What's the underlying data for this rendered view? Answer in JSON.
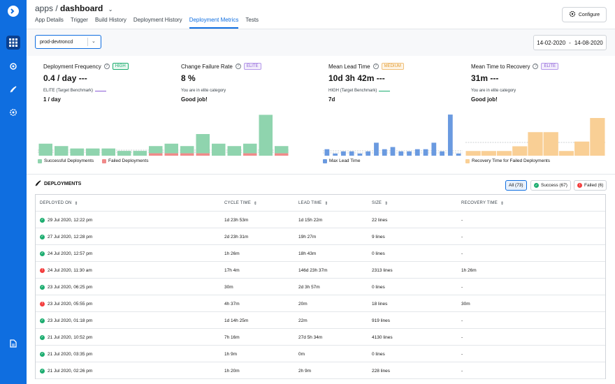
{
  "header": {
    "app_prefix": "apps / ",
    "app_name": "dashboard",
    "tabs": [
      {
        "label": "App Details",
        "active": false
      },
      {
        "label": "Trigger",
        "active": false
      },
      {
        "label": "Build History",
        "active": false
      },
      {
        "label": "Deployment History",
        "active": false
      },
      {
        "label": "Deployment Metrics",
        "active": true
      },
      {
        "label": "Tests",
        "active": false
      }
    ],
    "configure_label": "Configure"
  },
  "filters": {
    "environment": "prod-devtroncd",
    "date_from": "14-02-2020",
    "date_sep": "-",
    "date_to": "14-08-2020"
  },
  "metrics": [
    {
      "title": "Deployment Frequency",
      "badge": "HIGH",
      "badge_type": "high",
      "value": "0.4 / day ---",
      "sub": "ELITE (Target Benchmark)",
      "sub_color": "#8b5cd6",
      "foot": "1 / day"
    },
    {
      "title": "Change Failure Rate",
      "badge": "ELITE",
      "badge_type": "elite",
      "value": "8 %",
      "sub": "You are in elite category",
      "sub_color": "",
      "foot": "Good job!"
    },
    {
      "title": "Mean Lead Time",
      "badge": "MEDIUM",
      "badge_type": "medium",
      "value": "10d 3h 42m ---",
      "sub": "HIGH (Target Benchmark)",
      "sub_color": "#1dad70",
      "foot": "7d"
    },
    {
      "title": "Mean Time to Recovery",
      "badge": "ELITE",
      "badge_type": "elite",
      "value": "31m ---",
      "sub": "You are in elite category",
      "sub_color": "",
      "foot": "Good job!"
    }
  ],
  "chart_data": [
    {
      "type": "bar",
      "series": [
        {
          "name": "Successful Deployments",
          "color": "#8fd4ae",
          "values": [
            5,
            4,
            3,
            3,
            3,
            2,
            2,
            3,
            4,
            3,
            8,
            5,
            4,
            4,
            17,
            3
          ]
        },
        {
          "name": "Failed Deployments",
          "color": "#f08a8a",
          "values": [
            0,
            0,
            0,
            0,
            0,
            0,
            0,
            1,
            1,
            1,
            1,
            0,
            0,
            1,
            0,
            1
          ]
        }
      ],
      "series_note": "green and red series are stacked per day"
    },
    {
      "type": "bar",
      "series": [
        {
          "name": "Max Lead Time",
          "color": "#6a9ae0",
          "values": [
            3,
            1,
            2,
            2,
            1,
            2,
            6,
            3,
            4,
            2,
            2,
            3,
            3,
            6,
            2,
            19,
            1
          ]
        }
      ]
    },
    {
      "type": "bar",
      "series": [
        {
          "name": "Recovery Time for Failed Deployments",
          "color": "#f9cf95",
          "values": [
            1,
            1,
            1,
            2,
            5,
            5,
            1,
            3,
            8
          ]
        }
      ]
    }
  ],
  "deployments": {
    "title": "DEPLOYMENTS",
    "filters": [
      {
        "label": "All (73)",
        "active": true,
        "status": ""
      },
      {
        "label": "Success (67)",
        "active": false,
        "status": "ok"
      },
      {
        "label": "Failed (6)",
        "active": false,
        "status": "fail"
      }
    ],
    "columns": [
      "DEPLOYED ON",
      "CYCLE TIME",
      "LEAD TIME",
      "SIZE",
      "RECOVERY TIME"
    ],
    "rows": [
      {
        "status": "ok",
        "deployed_on": "29 Jul 2020, 12:22 pm",
        "cycle": "1d 23h 53m",
        "lead": "1d 15h 22m",
        "size": "22 lines",
        "recovery": "-"
      },
      {
        "status": "ok",
        "deployed_on": "27 Jul 2020, 12:28 pm",
        "cycle": "2d 23h 31m",
        "lead": "19h 27m",
        "size": "9 lines",
        "recovery": "-"
      },
      {
        "status": "ok",
        "deployed_on": "24 Jul 2020, 12:57 pm",
        "cycle": "1h 26m",
        "lead": "18h 43m",
        "size": "0 lines",
        "recovery": "-"
      },
      {
        "status": "fail",
        "deployed_on": "24 Jul 2020, 11:30 am",
        "cycle": "17h 4m",
        "lead": "146d 23h 37m",
        "size": "2313 lines",
        "recovery": "1h 26m"
      },
      {
        "status": "ok",
        "deployed_on": "23 Jul 2020, 06:25 pm",
        "cycle": "30m",
        "lead": "2d 3h 57m",
        "size": "0 lines",
        "recovery": "-"
      },
      {
        "status": "fail",
        "deployed_on": "23 Jul 2020, 05:55 pm",
        "cycle": "4h 37m",
        "lead": "20m",
        "size": "18 lines",
        "recovery": "30m"
      },
      {
        "status": "ok",
        "deployed_on": "23 Jul 2020, 01:18 pm",
        "cycle": "1d 14h 25m",
        "lead": "22m",
        "size": "919 lines",
        "recovery": "-"
      },
      {
        "status": "ok",
        "deployed_on": "21 Jul 2020, 10:52 pm",
        "cycle": "7h 16m",
        "lead": "27d 5h 34m",
        "size": "4130 lines",
        "recovery": "-"
      },
      {
        "status": "ok",
        "deployed_on": "21 Jul 2020, 03:35 pm",
        "cycle": "1h 9m",
        "lead": "0m",
        "size": "0 lines",
        "recovery": "-"
      },
      {
        "status": "ok",
        "deployed_on": "21 Jul 2020, 02:26 pm",
        "cycle": "1h 20m",
        "lead": "2h 9m",
        "size": "228 lines",
        "recovery": "-"
      }
    ]
  }
}
